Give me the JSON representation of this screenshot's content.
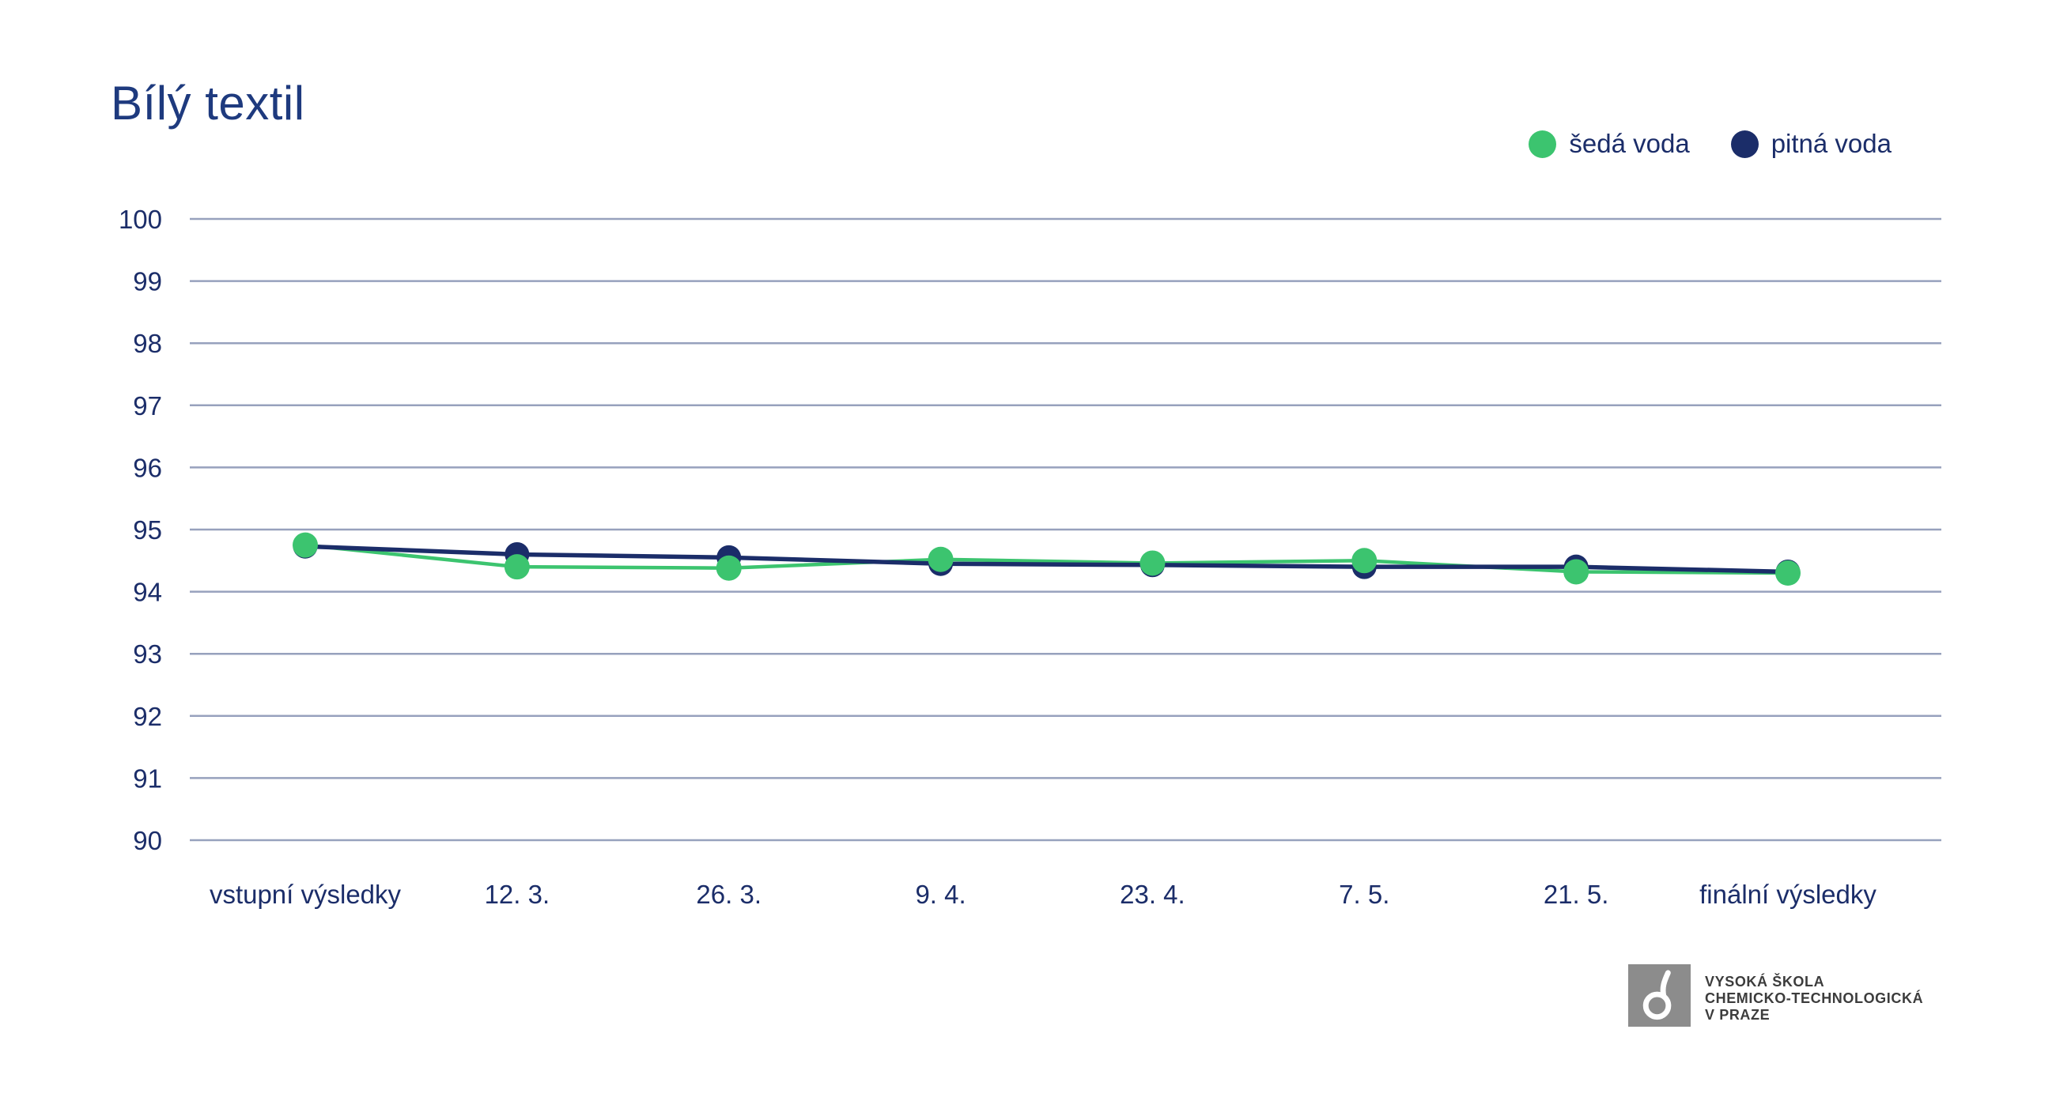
{
  "title": "Bílý textil",
  "legend": {
    "items": [
      {
        "label": "šedá voda",
        "color": "#3cc46f"
      },
      {
        "label": "pitná voda",
        "color": "#1b2d69"
      }
    ]
  },
  "colors": {
    "accent_green": "#3cc46f",
    "accent_navy": "#1b2d69",
    "grid_line": "#97a1bd",
    "text_navy": "#1b2d69",
    "title_navy": "#1e3a7e",
    "logo_gray": "#8c8c8c",
    "logo_text_gray": "#3c3c3c"
  },
  "chart_data": {
    "type": "line",
    "title": "Bílý textil",
    "categories": [
      "vstupní výsledky",
      "12. 3.",
      "26. 3.",
      "9. 4.",
      "23. 4.",
      "7. 5.",
      "21. 5.",
      "finální výsledky"
    ],
    "series": [
      {
        "name": "šedá voda",
        "color": "#3cc46f",
        "values": [
          94.75,
          94.4,
          94.38,
          94.52,
          94.46,
          94.5,
          94.32,
          94.3
        ]
      },
      {
        "name": "pitná voda",
        "color": "#1b2d69",
        "values": [
          94.73,
          94.6,
          94.55,
          94.45,
          94.43,
          94.4,
          94.4,
          94.32
        ]
      }
    ],
    "xlabel": "",
    "ylabel": "",
    "ylim": [
      90,
      100
    ],
    "yticks": [
      90,
      91,
      92,
      93,
      94,
      95,
      96,
      97,
      98,
      99,
      100
    ],
    "grid": "horizontal",
    "legend_position": "top-right"
  },
  "footer_logo": {
    "line1": "VYSOKÁ ŠKOLA",
    "line2": "CHEMICKO-TECHNOLOGICKÁ",
    "line3": "V PRAZE"
  }
}
